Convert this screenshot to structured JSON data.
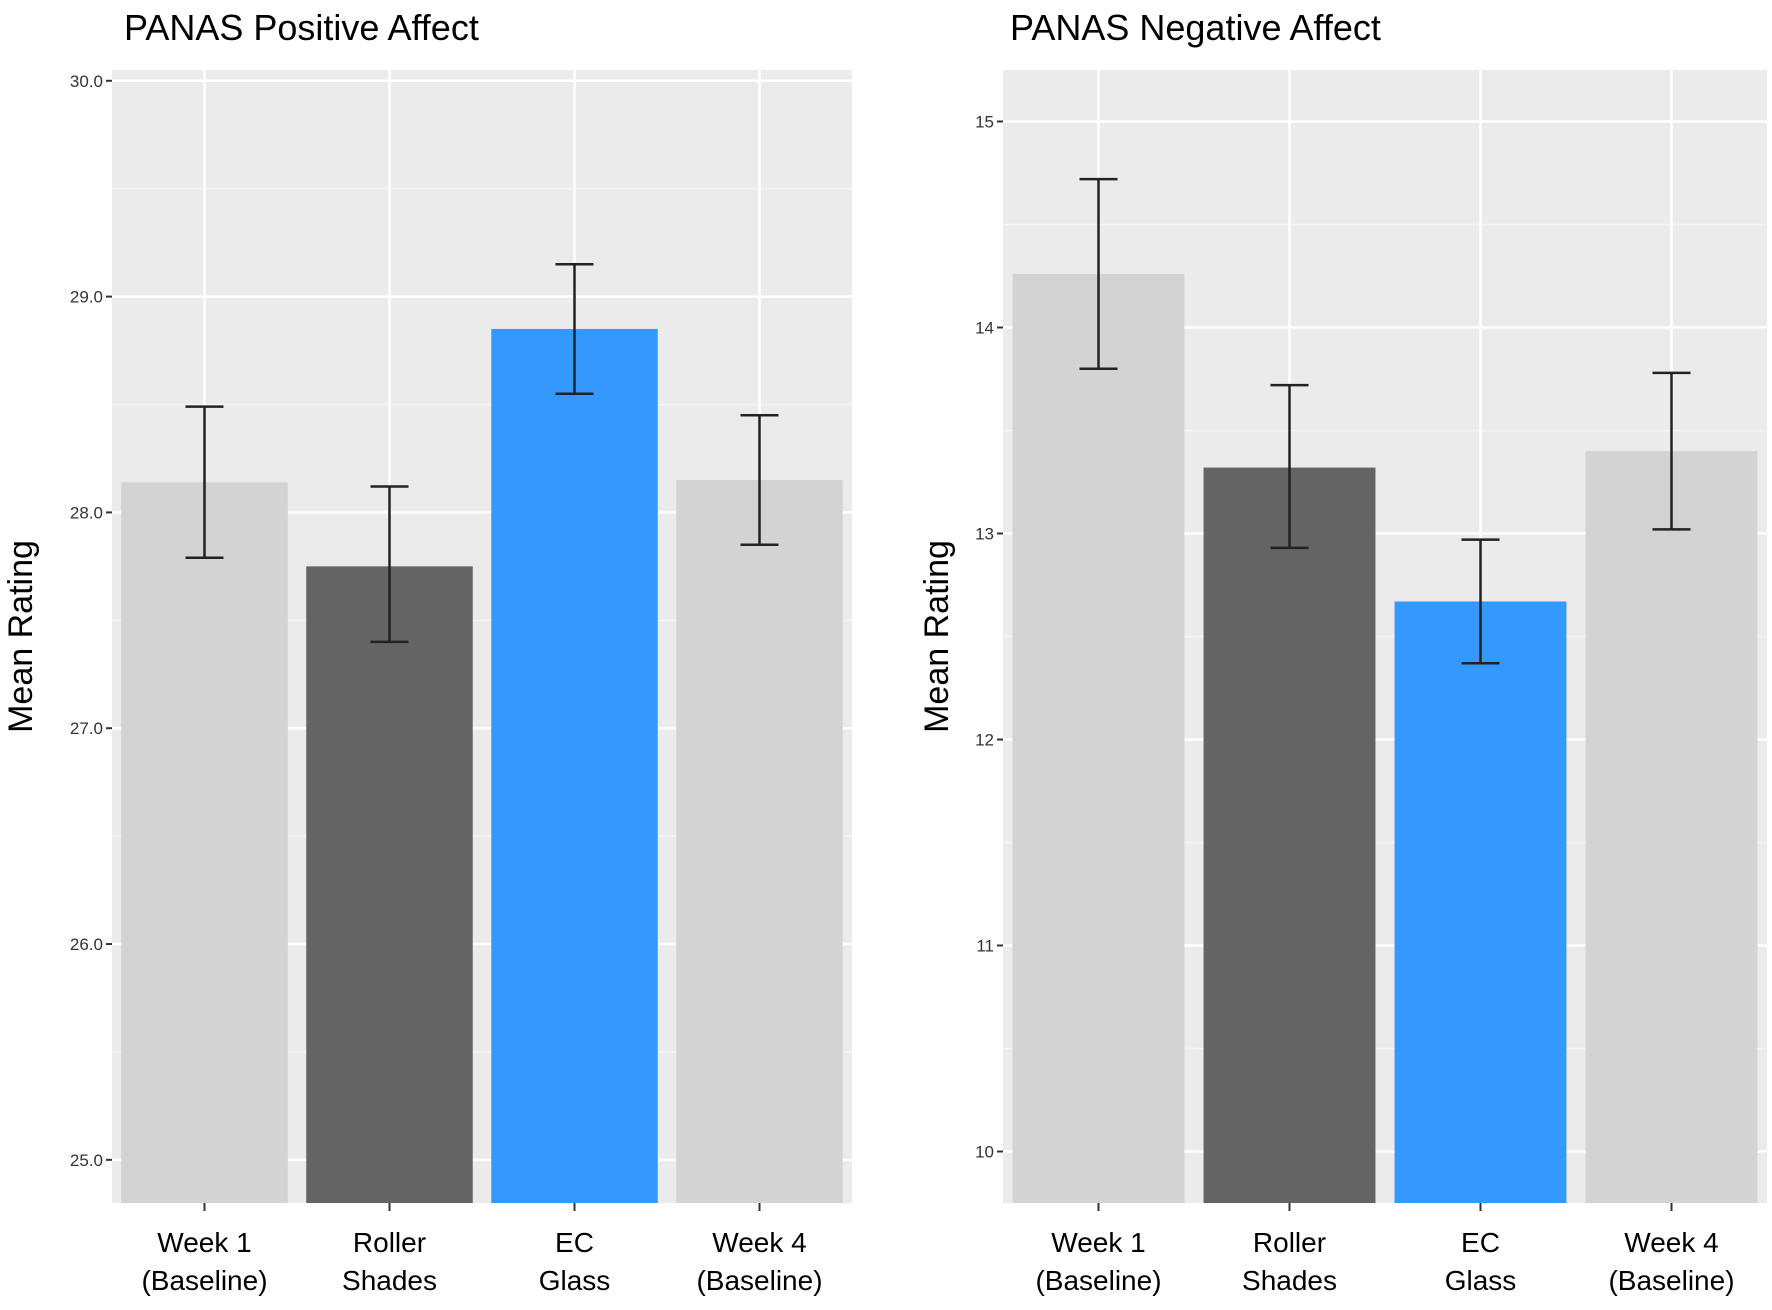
{
  "chart_data": [
    {
      "type": "bar",
      "title": "PANAS Positive Affect",
      "ylabel": "Mean Rating",
      "xlabel": "",
      "ylim": [
        24.8,
        30.05
      ],
      "yticks": [
        25,
        26,
        27,
        28,
        29,
        30
      ],
      "ytick_labels": [
        "25.0",
        "26.0",
        "27.0",
        "28.0",
        "29.0",
        "30.0"
      ],
      "categories": [
        [
          "Week 1",
          "(Baseline)"
        ],
        [
          "Roller",
          "Shades"
        ],
        [
          "EC",
          "Glass"
        ],
        [
          "Week 4",
          "(Baseline)"
        ]
      ],
      "values": [
        28.14,
        27.75,
        28.85,
        28.15
      ],
      "error_low": [
        27.79,
        27.4,
        28.55,
        27.85
      ],
      "error_high": [
        28.49,
        28.12,
        29.15,
        28.45
      ],
      "colors": [
        "#d3d3d3",
        "#646464",
        "#3399ff",
        "#d3d3d3"
      ],
      "grid": true,
      "legend": "none"
    },
    {
      "type": "bar",
      "title": "PANAS Negative Affect",
      "ylabel": "Mean Rating",
      "xlabel": "",
      "ylim": [
        9.75,
        15.25
      ],
      "yticks": [
        10,
        11,
        12,
        13,
        14,
        15
      ],
      "ytick_labels": [
        "10",
        "11",
        "12",
        "13",
        "14",
        "15"
      ],
      "categories": [
        [
          "Week 1",
          "(Baseline)"
        ],
        [
          "Roller",
          "Shades"
        ],
        [
          "EC",
          "Glass"
        ],
        [
          "Week 4",
          "(Baseline)"
        ]
      ],
      "values": [
        14.26,
        13.32,
        12.67,
        13.4
      ],
      "error_low": [
        13.8,
        12.93,
        12.37,
        13.02
      ],
      "error_high": [
        14.72,
        13.72,
        12.97,
        13.78
      ],
      "colors": [
        "#d3d3d3",
        "#646464",
        "#3399ff",
        "#d3d3d3"
      ],
      "grid": true,
      "legend": "none"
    }
  ]
}
